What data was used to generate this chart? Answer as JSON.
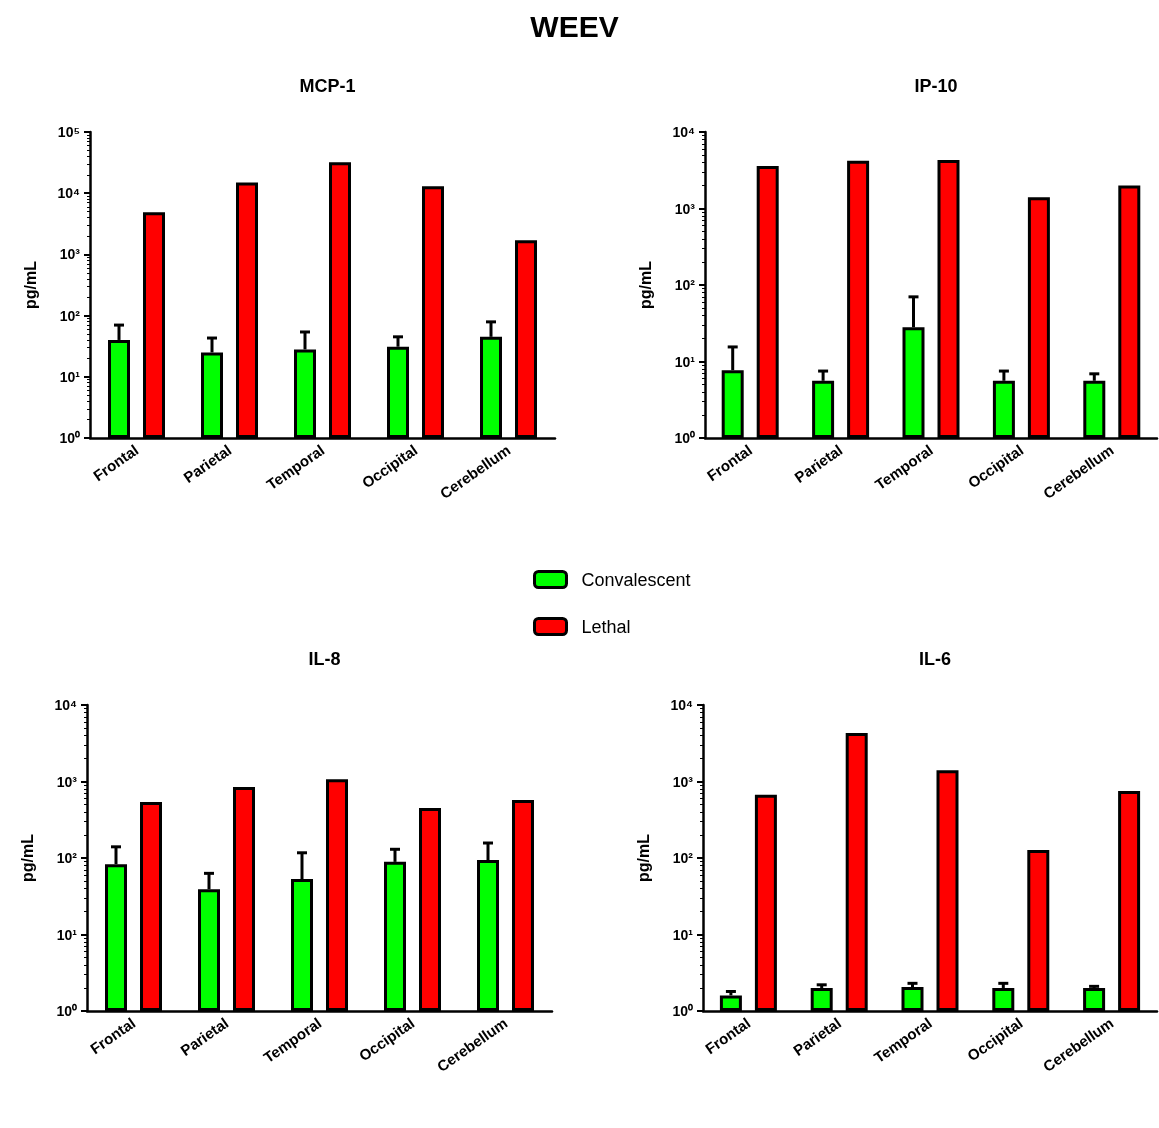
{
  "chart_data": [
    {
      "type": "bar",
      "title": "MCP-1",
      "annotations": [
        "WEEV"
      ],
      "ylabel": "pg/mL",
      "log": true,
      "grid": false,
      "legend": "bottom right",
      "categories": [
        "Frontal",
        "Parietal",
        "Temporal",
        "Occipital",
        "Cerebellum"
      ],
      "ylim": [
        1,
        100000
      ],
      "yticks": [
        {
          "value": 1,
          "label": "10⁰"
        },
        {
          "value": 10,
          "label": "10¹"
        },
        {
          "value": 100,
          "label": "10²"
        },
        {
          "value": 1000,
          "label": "10³"
        },
        {
          "value": 10000,
          "label": "10⁴"
        },
        {
          "value": 100000,
          "label": "10⁵"
        }
      ],
      "series": [
        {
          "name": "Convalescent",
          "color": "#00ff00",
          "values": [
            40,
            25,
            28,
            31,
            45
          ],
          "errors": [
            [
              40,
              70
            ],
            [
              25,
              43
            ],
            [
              28,
              54
            ],
            [
              31,
              45
            ],
            [
              45,
              79
            ]
          ]
        },
        {
          "name": "Lethal",
          "color": "#ff0000",
          "values": [
            4900,
            15000,
            32000,
            13000,
            1700
          ]
        }
      ]
    },
    {
      "type": "bar",
      "title": "IP-10",
      "ylabel": "pg/mL",
      "log": true,
      "grid": false,
      "categories": [
        "Frontal",
        "Parietal",
        "Temporal",
        "Occipital",
        "Cerebellum"
      ],
      "ylim": [
        1,
        10000
      ],
      "yticks": [
        {
          "value": 1,
          "label": "10⁰"
        },
        {
          "value": 10,
          "label": "10¹"
        },
        {
          "value": 100,
          "label": "10²"
        },
        {
          "value": 1000,
          "label": "10³"
        },
        {
          "value": 10000,
          "label": "10⁴"
        }
      ],
      "series": [
        {
          "color": "#00ff00",
          "values": [
            7.7,
            5.6,
            28,
            5.6,
            5.6
          ],
          "errors": [
            [
              7.7,
              15.5
            ],
            [
              5.6,
              7.5
            ],
            [
              28,
              70
            ],
            [
              5.6,
              7.5
            ],
            [
              5.6,
              6.9
            ]
          ]
        },
        {
          "color": "#ff0000",
          "values": [
            3600,
            4200,
            4300,
            1400,
            2000
          ]
        }
      ]
    },
    {
      "type": "bar",
      "title": "IL-8",
      "ylabel": "pg/mL",
      "log": true,
      "grid": false,
      "categories": [
        "Frontal",
        "Parietal",
        "Temporal",
        "Occipital",
        "Cerebellum"
      ],
      "ylim": [
        1,
        10000
      ],
      "yticks": [
        {
          "value": 1,
          "label": "10⁰"
        },
        {
          "value": 10,
          "label": "10¹"
        },
        {
          "value": 100,
          "label": "10²"
        },
        {
          "value": 1000,
          "label": "10³"
        },
        {
          "value": 10000,
          "label": "10⁴"
        }
      ],
      "series": [
        {
          "color": "#00ff00",
          "values": [
            83,
            39,
            53,
            89,
            94
          ],
          "errors": [
            [
              83,
              140
            ],
            [
              39,
              63
            ],
            [
              53,
              117
            ],
            [
              89,
              130
            ],
            [
              94,
              157
            ]
          ]
        },
        {
          "color": "#ff0000",
          "values": [
            540,
            850,
            1070,
            450,
            575
          ]
        }
      ]
    },
    {
      "type": "bar",
      "title": "IL-6",
      "ylabel": "pg/mL",
      "log": true,
      "grid": false,
      "categories": [
        "Frontal",
        "Parietal",
        "Temporal",
        "Occipital",
        "Cerebellum"
      ],
      "ylim": [
        1,
        10000
      ],
      "yticks": [
        {
          "value": 1,
          "label": "10⁰"
        },
        {
          "value": 10,
          "label": "10¹"
        },
        {
          "value": 100,
          "label": "10²"
        },
        {
          "value": 1000,
          "label": "10³"
        },
        {
          "value": 10000,
          "label": "10⁴"
        }
      ],
      "series": [
        {
          "color": "#00ff00",
          "values": [
            1.6,
            2.0,
            2.06,
            2.0,
            2.0
          ],
          "errors": [
            [
              1.6,
              1.8
            ],
            [
              2.0,
              2.2
            ],
            [
              2.06,
              2.3
            ],
            [
              2.0,
              2.3
            ],
            [
              2.0,
              2.1
            ]
          ]
        },
        {
          "color": "#ff0000",
          "values": [
            670,
            4300,
            1400,
            127,
            750
          ]
        }
      ]
    }
  ]
}
